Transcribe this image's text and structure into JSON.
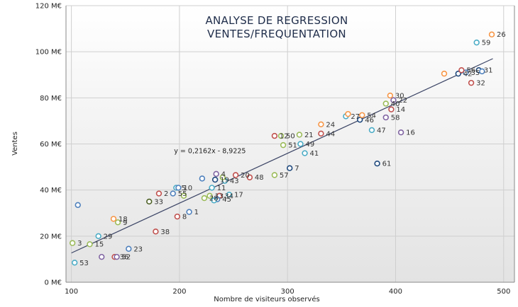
{
  "chart_data": {
    "type": "scatter",
    "title_lines": [
      "ANALYSE DE REGRESSION",
      "VENTES/FREQUENTATION"
    ],
    "xlabel": "Nombre de visiteurs observés",
    "ylabel": "Ventes",
    "xlim": [
      95,
      510
    ],
    "ylim": [
      0,
      120
    ],
    "x_ticks": [
      "100",
      "200",
      "300",
      "400",
      "500"
    ],
    "x_tick_values": [
      100,
      200,
      300,
      400,
      500
    ],
    "y_ticks": [
      "0 M€",
      "20 M€",
      "40 M€",
      "60 M€",
      "80 M€",
      "100 M€",
      "120 M€"
    ],
    "y_tick_values": [
      0,
      20,
      40,
      60,
      80,
      100,
      120
    ],
    "grid": true,
    "trendline": {
      "slope": 0.2162,
      "intercept": -8.9225,
      "equation": "y = 0,2162x - 8,9225",
      "equation_x": 195,
      "equation_y": 56
    },
    "points": [
      {
        "label": "1",
        "x": 209,
        "y": 30.5,
        "color": "#4f81bd"
      },
      {
        "label": "2",
        "x": 181,
        "y": 38.5,
        "color": "#c0504d"
      },
      {
        "label": "3",
        "x": 101,
        "y": 17,
        "color": "#9bbb59"
      },
      {
        "label": "4",
        "x": 234,
        "y": 47,
        "color": "#8064a2"
      },
      {
        "label": "5",
        "x": 197,
        "y": 41,
        "color": "#4bacc6"
      },
      {
        "label": "7",
        "x": 302,
        "y": 49.5,
        "color": "#1f497d"
      },
      {
        "label": "8",
        "x": 198,
        "y": 28.5,
        "color": "#c0504d"
      },
      {
        "label": "9",
        "x": 143,
        "y": 26,
        "color": "#9bbb59"
      },
      {
        "label": "10",
        "x": 199,
        "y": 41,
        "color": "#4f81bd"
      },
      {
        "label": "11",
        "x": 230,
        "y": 41,
        "color": "#4bacc6"
      },
      {
        "label": "12",
        "x": 288,
        "y": 63.5,
        "color": "#c0504d"
      },
      {
        "label": "13",
        "x": 228,
        "y": 37.5,
        "color": "#9bbb59"
      },
      {
        "label": "14",
        "x": 396,
        "y": 75,
        "color": "#c0504d"
      },
      {
        "label": "15",
        "x": 117,
        "y": 16.5,
        "color": "#9bbb59"
      },
      {
        "label": "16",
        "x": 405,
        "y": 65,
        "color": "#8064a2"
      },
      {
        "label": "17",
        "x": 246,
        "y": 38,
        "color": "#4bacc6"
      },
      {
        "label": "18",
        "x": 139,
        "y": 27.5,
        "color": "#f79646"
      },
      {
        "label": "19",
        "x": 233,
        "y": 44.5,
        "color": "#1f497d"
      },
      {
        "label": "20",
        "x": 252,
        "y": 46.5,
        "color": "#c0504d"
      },
      {
        "label": "21",
        "x": 311,
        "y": 64,
        "color": "#9bbb59"
      },
      {
        "label": "22",
        "x": 398,
        "y": 79,
        "color": "#8064a2"
      },
      {
        "label": "23",
        "x": 153,
        "y": 14.5,
        "color": "#4f81bd"
      },
      {
        "label": "24",
        "x": 331,
        "y": 68.5,
        "color": "#f79646"
      },
      {
        "label": "26",
        "x": 489,
        "y": 107.5,
        "color": "#f79646"
      },
      {
        "label": "27",
        "x": 354,
        "y": 72,
        "color": "#4bacc6"
      },
      {
        "label": "28",
        "x": 223,
        "y": 36.5,
        "color": "#9bbb59"
      },
      {
        "label": "29",
        "x": 125,
        "y": 20,
        "color": "#4bacc6"
      },
      {
        "label": "30",
        "x": 395,
        "y": 81,
        "color": "#f79646"
      },
      {
        "label": "31",
        "x": 477,
        "y": 92,
        "color": "#1f497d"
      },
      {
        "label": "32",
        "x": 470,
        "y": 86.5,
        "color": "#c0504d"
      },
      {
        "label": "33",
        "x": 172,
        "y": 35,
        "color": "#4f6228"
      },
      {
        "label": "34",
        "x": 237,
        "y": 37.5,
        "color": "#c0504d"
      },
      {
        "label": "35",
        "x": 465,
        "y": 91,
        "color": "#4f81bd"
      },
      {
        "label": "36",
        "x": 140,
        "y": 11,
        "color": "#c0504d"
      },
      {
        "label": "38",
        "x": 178,
        "y": 22,
        "color": "#c0504d"
      },
      {
        "label": "40",
        "x": 391,
        "y": 77.5,
        "color": "#9bbb59"
      },
      {
        "label": "41",
        "x": 316,
        "y": 56,
        "color": "#4bacc6"
      },
      {
        "label": "42",
        "x": 458,
        "y": 90.5,
        "color": "#1f497d"
      },
      {
        "label": "43",
        "x": 242,
        "y": 44,
        "color": "#4bacc6"
      },
      {
        "label": "44",
        "x": 331,
        "y": 64.5,
        "color": "#c0504d"
      },
      {
        "label": "45",
        "x": 235,
        "y": 36,
        "color": "#4f81bd"
      },
      {
        "label": "46",
        "x": 367,
        "y": 70.5,
        "color": "#1f497d"
      },
      {
        "label": "47",
        "x": 378,
        "y": 66,
        "color": "#4bacc6"
      },
      {
        "label": "48",
        "x": 265,
        "y": 45.5,
        "color": "#c0504d"
      },
      {
        "label": "49",
        "x": 312,
        "y": 60,
        "color": "#4bacc6"
      },
      {
        "label": "50",
        "x": 294,
        "y": 63.5,
        "color": "#9bbb59"
      },
      {
        "label": "51",
        "x": 296,
        "y": 59.5,
        "color": "#9bbb59"
      },
      {
        "label": "52",
        "x": 142,
        "y": 11,
        "color": "#8064a2"
      },
      {
        "label": "53",
        "x": 103,
        "y": 8.5,
        "color": "#4bacc6"
      },
      {
        "label": "54",
        "x": 369,
        "y": 72.5,
        "color": "#f79646"
      },
      {
        "label": "55",
        "x": 194,
        "y": 38.5,
        "color": "#4f81bd"
      },
      {
        "label": "56",
        "x": 461,
        "y": 92,
        "color": "#c0504d"
      },
      {
        "label": "57",
        "x": 288,
        "y": 46.5,
        "color": "#9bbb59"
      },
      {
        "label": "58",
        "x": 391,
        "y": 71.5,
        "color": "#8064a2"
      },
      {
        "label": "59",
        "x": 475,
        "y": 104,
        "color": "#4bacc6"
      },
      {
        "label": "61",
        "x": 383,
        "y": 51.5,
        "color": "#1f497d"
      },
      {
        "label": "",
        "x": 106,
        "y": 33.5,
        "color": "#4f81bd"
      },
      {
        "label": "",
        "x": 128,
        "y": 11,
        "color": "#8064a2"
      },
      {
        "label": "",
        "x": 204,
        "y": 37.5,
        "color": "#9bbb59"
      },
      {
        "label": "",
        "x": 221,
        "y": 45,
        "color": "#4f81bd"
      },
      {
        "label": "",
        "x": 232,
        "y": 35.5,
        "color": "#4bacc6"
      },
      {
        "label": "",
        "x": 240,
        "y": 45.5,
        "color": "#9bbb59"
      },
      {
        "label": "",
        "x": 356,
        "y": 73,
        "color": "#f79646"
      },
      {
        "label": "",
        "x": 445,
        "y": 90.5,
        "color": "#f79646"
      },
      {
        "label": "",
        "x": 480,
        "y": 91.5,
        "color": "#4f81bd"
      }
    ]
  }
}
